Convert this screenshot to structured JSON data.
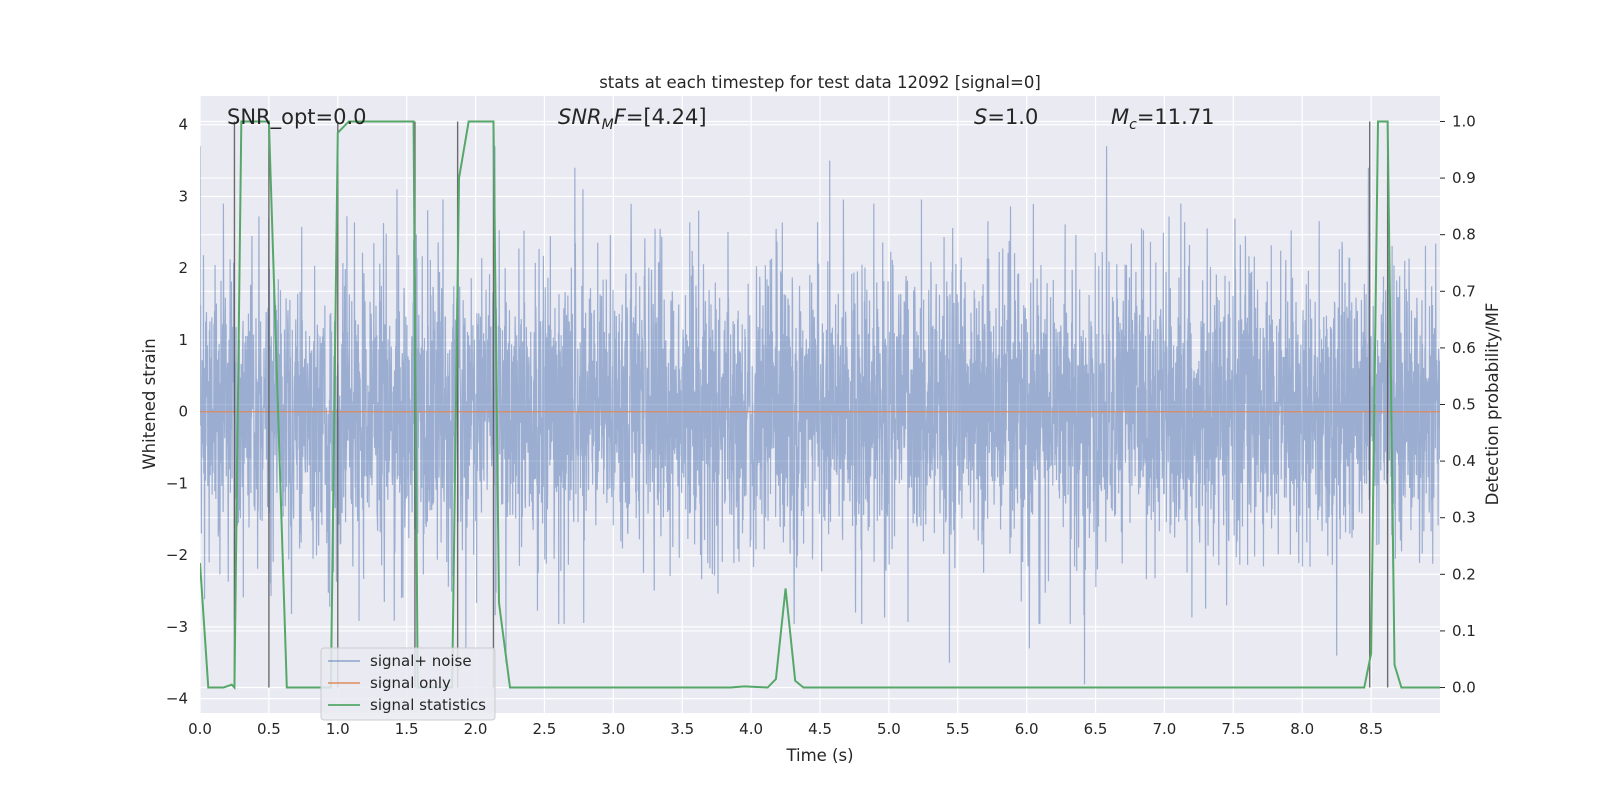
{
  "chart_data": {
    "type": "line",
    "title": "stats at each timestep for test data 12092 [signal=0]",
    "xlabel": "Time (s)",
    "ylabel_left": "Whitened strain",
    "ylabel_right": "Detection probability/MF",
    "xlim": [
      0.0,
      9.0
    ],
    "ylim_left": [
      -4.2,
      4.4
    ],
    "ylim_right": [
      -0.045,
      1.045
    ],
    "x_ticks": [
      0.0,
      0.5,
      1.0,
      1.5,
      2.0,
      2.5,
      3.0,
      3.5,
      4.0,
      4.5,
      5.0,
      5.5,
      6.0,
      6.5,
      7.0,
      7.5,
      8.0,
      8.5
    ],
    "x_tick_labels": [
      "0.0",
      "0.5",
      "1.0",
      "1.5",
      "2.0",
      "2.5",
      "3.0",
      "3.5",
      "4.0",
      "4.5",
      "5.0",
      "5.5",
      "6.0",
      "6.5",
      "7.0",
      "7.5",
      "8.0",
      "8.5"
    ],
    "y_left_ticks": [
      -4,
      -3,
      -2,
      -1,
      0,
      1,
      2,
      3,
      4
    ],
    "y_left_tick_labels": [
      "−4",
      "−3",
      "−2",
      "−1",
      "0",
      "1",
      "2",
      "3",
      "4"
    ],
    "y_right_ticks": [
      0.0,
      0.1,
      0.2,
      0.3,
      0.4,
      0.5,
      0.6,
      0.7,
      0.8,
      0.9,
      1.0
    ],
    "y_right_tick_labels": [
      "0.0",
      "0.1",
      "0.2",
      "0.3",
      "0.4",
      "0.5",
      "0.6",
      "0.7",
      "0.8",
      "0.9",
      "1.0"
    ],
    "annotations": {
      "snr_opt": "SNR_opt=0.0",
      "snr_mf_italic": "SNR",
      "snr_mf_sub": "M",
      "snr_mf_italic2": "F",
      "snr_mf_value": "=[4.24]",
      "s_italic": "S",
      "s_value": "=1.0",
      "mc_italic": "M",
      "mc_sub": "c",
      "mc_value": "=11.71"
    },
    "legend": {
      "location": "lower-left",
      "entries": [
        "signal+ noise",
        "signal only",
        "signal statistics"
      ]
    },
    "series": [
      {
        "name": "signal+ noise",
        "axis": "left",
        "color": "#4c72b0",
        "sample_rate": 512,
        "duration": 9.0,
        "description": "whitened noise samples",
        "peak_values": [
          [
            0.0,
            3.7
          ],
          [
            0.17,
            2.9
          ],
          [
            0.5,
            2.7
          ],
          [
            1.43,
            3.1
          ],
          [
            1.55,
            2.4
          ],
          [
            2.14,
            3.7
          ],
          [
            2.22,
            -3.5
          ],
          [
            2.72,
            3.4
          ],
          [
            2.78,
            3.1
          ],
          [
            4.57,
            3.5
          ],
          [
            6.58,
            3.7
          ],
          [
            6.42,
            -3.8
          ],
          [
            5.44,
            -3.5
          ],
          [
            6.02,
            -3.3
          ],
          [
            8.48,
            3.4
          ],
          [
            8.25,
            -3.4
          ],
          [
            1.93,
            -3.3
          ],
          [
            3.62,
            2.8
          ],
          [
            4.89,
            2.9
          ],
          [
            7.12,
            2.9
          ]
        ]
      },
      {
        "name": "signal only",
        "axis": "left",
        "color": "#dd8452",
        "x": [
          0.0,
          9.0
        ],
        "y": [
          0.0,
          0.0
        ]
      },
      {
        "name": "signal statistics",
        "axis": "right",
        "color": "#55a868",
        "x": [
          0.0,
          0.06,
          0.17,
          0.23,
          0.25,
          0.3,
          0.5,
          0.63,
          0.95,
          1.0,
          1.08,
          1.55,
          1.58,
          1.83,
          1.88,
          1.95,
          2.13,
          2.17,
          2.25,
          3.85,
          3.95,
          4.12,
          4.18,
          4.25,
          4.32,
          4.38,
          8.45,
          8.5,
          8.55,
          8.62,
          8.67,
          8.72,
          9.0
        ],
        "y": [
          0.22,
          0.0,
          0.0,
          0.005,
          0.0,
          1.0,
          1.0,
          0.0,
          0.0,
          0.98,
          1.0,
          1.0,
          0.0,
          0.0,
          0.9,
          1.0,
          1.0,
          0.15,
          0.0,
          0.0,
          0.002,
          0.0,
          0.015,
          0.175,
          0.012,
          0.0,
          0.0,
          0.06,
          1.0,
          1.0,
          0.04,
          0.0,
          0.0
        ]
      }
    ],
    "threshold_lines": {
      "color": "#555555",
      "x": [
        0.25,
        0.5,
        1.0,
        1.56,
        1.87,
        2.13,
        8.49,
        8.62
      ]
    }
  }
}
